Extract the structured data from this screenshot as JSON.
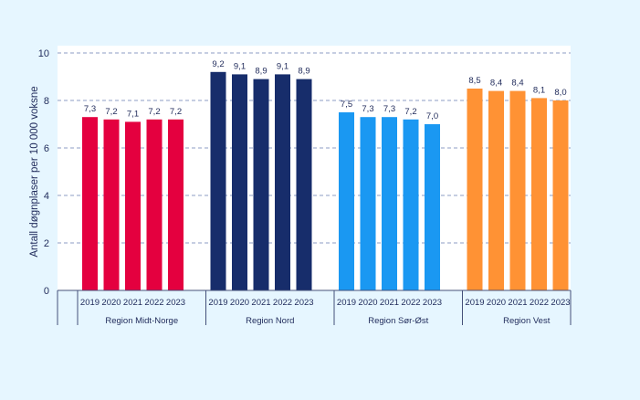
{
  "chart_data": {
    "type": "bar",
    "title": "",
    "xlabel": "",
    "ylabel": "Antall døgnplaser per 10 000 voksne",
    "ylim": [
      0,
      10
    ],
    "yticks": [
      "0",
      "2",
      "4",
      "6",
      "8",
      "10"
    ],
    "grid": true,
    "legend": "none",
    "groups": [
      {
        "name": "Region Midt-Norge",
        "color": "#e4003f",
        "categories": [
          "2019",
          "2020",
          "2021",
          "2022",
          "2023"
        ],
        "values": [
          7.3,
          7.2,
          7.1,
          7.2,
          7.2
        ],
        "labels": [
          "7,3",
          "7,2",
          "7,1",
          "7,2",
          "7,2"
        ]
      },
      {
        "name": "Region Nord",
        "color": "#172d6b",
        "categories": [
          "2019",
          "2020",
          "2021",
          "2022",
          "2023"
        ],
        "values": [
          9.2,
          9.1,
          8.9,
          9.1,
          8.9
        ],
        "labels": [
          "9,2",
          "9,1",
          "8,9",
          "9,1",
          "8,9"
        ]
      },
      {
        "name": "Region Sør-Øst",
        "color": "#1a98f2",
        "categories": [
          "2019",
          "2020",
          "2021",
          "2022",
          "2023"
        ],
        "values": [
          7.5,
          7.3,
          7.3,
          7.2,
          7.0
        ],
        "labels": [
          "7,5",
          "7,3",
          "7,3",
          "7,2",
          "7,0"
        ]
      },
      {
        "name": "Region Vest",
        "color": "#ff9234",
        "categories": [
          "2019",
          "2020",
          "2021",
          "2022",
          "2023"
        ],
        "values": [
          8.5,
          8.4,
          8.4,
          8.1,
          8.0
        ],
        "labels": [
          "8,5",
          "8,4",
          "8,4",
          "8,1",
          "8,0"
        ]
      }
    ]
  }
}
